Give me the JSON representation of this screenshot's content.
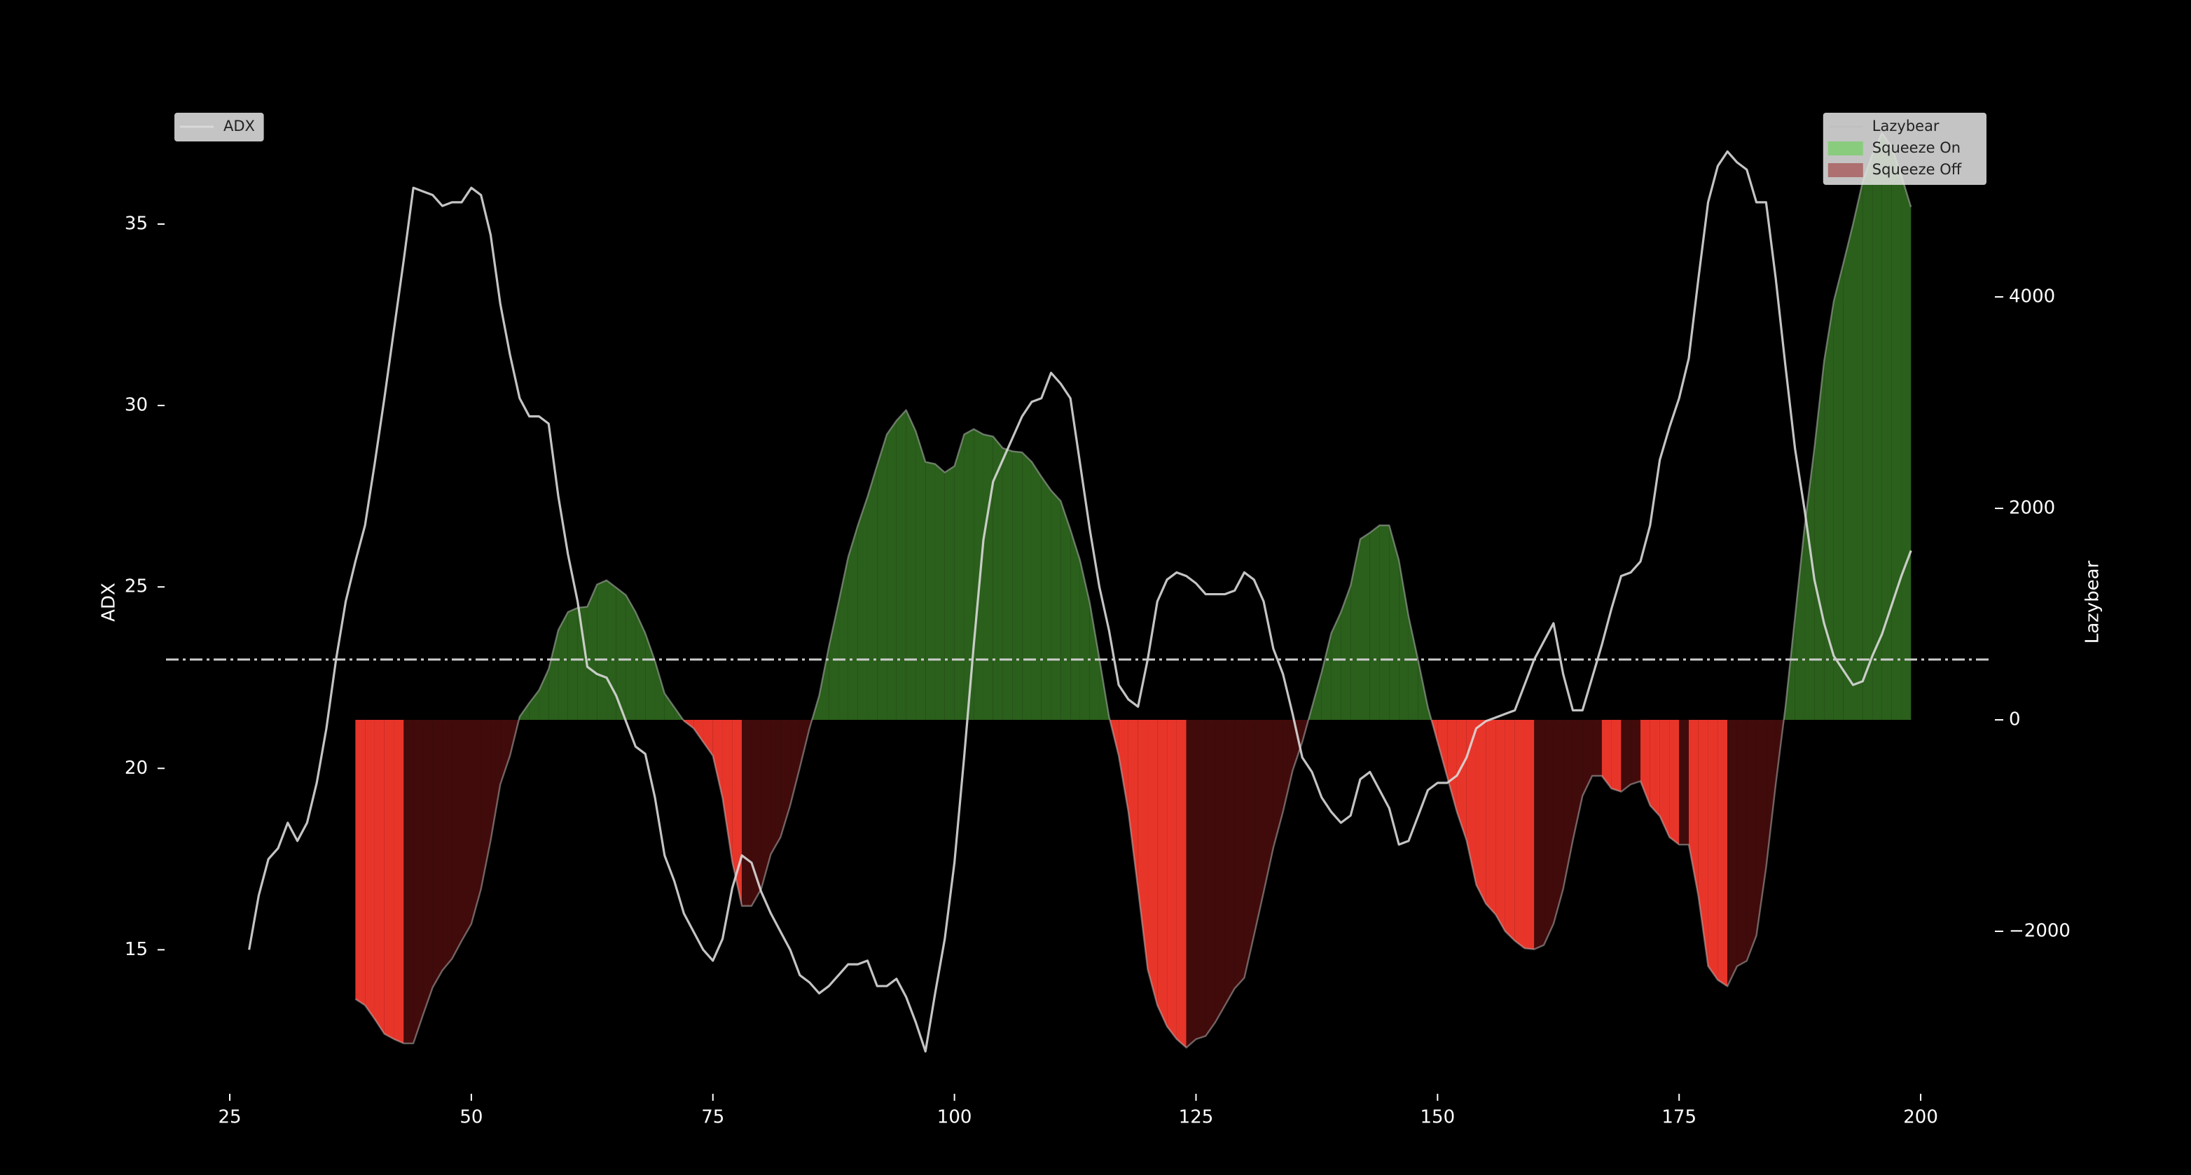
{
  "chart_data": {
    "type": "line",
    "ylabel": "ADX",
    "y2label": "Lazybear",
    "xlim": [
      18.4,
      207.1
    ],
    "xticks": [
      25,
      50,
      75,
      100,
      125,
      150,
      175,
      200
    ],
    "ylim": [
      10.8,
      38.3
    ],
    "yticks": [
      15,
      20,
      25,
      30,
      35
    ],
    "y2lim": [
      -3616,
      5821
    ],
    "y2ticks": [
      {
        "value": -2000,
        "label": "−2000"
      },
      0,
      2000,
      4000
    ],
    "threshold": 23,
    "threshold_color": "#cccccc",
    "legend_loc": "upper left",
    "legend2_loc": "upper right",
    "series": [
      {
        "name": "ADX",
        "color": "#d9d9d9",
        "x": [
          27,
          28,
          29,
          30,
          31,
          32,
          33,
          34,
          35,
          36,
          37,
          38,
          39,
          40,
          41,
          42,
          43,
          44,
          45,
          46,
          47,
          48,
          49,
          50,
          51,
          52,
          53,
          54,
          55,
          56,
          57,
          58,
          59,
          60,
          61,
          62,
          63,
          64,
          65,
          66,
          67,
          68,
          69,
          70,
          71,
          72,
          73,
          74,
          75,
          76,
          77,
          78,
          79,
          80,
          81,
          82,
          83,
          84,
          85,
          86,
          87,
          88,
          89,
          90,
          91,
          92,
          93,
          94,
          95,
          96,
          97,
          98,
          99,
          100,
          101,
          102,
          103,
          104,
          105,
          106,
          107,
          108,
          109,
          110,
          111,
          112,
          113,
          114,
          115,
          116,
          117,
          118,
          119,
          120,
          121,
          122,
          123,
          124,
          125,
          126,
          127,
          128,
          129,
          130,
          131,
          132,
          133,
          134,
          135,
          136,
          137,
          138,
          139,
          140,
          141,
          142,
          143,
          144,
          145,
          146,
          147,
          148,
          149,
          150,
          151,
          152,
          153,
          154,
          155,
          156,
          157,
          158,
          159,
          160,
          161,
          162,
          163,
          164,
          165,
          166,
          167,
          168,
          169,
          170,
          171,
          172,
          173,
          174,
          175,
          176,
          177,
          178,
          179,
          180,
          181,
          182,
          183,
          184,
          185,
          186,
          187,
          188,
          189,
          190,
          191,
          192,
          193,
          194,
          195,
          196,
          197,
          198,
          199
        ],
        "values": [
          15.0,
          16.5,
          17.5,
          17.8,
          18.5,
          18.0,
          18.5,
          19.6,
          21.1,
          23.0,
          24.6,
          25.7,
          26.7,
          28.4,
          30.2,
          32.1,
          34.0,
          36.0,
          35.9,
          35.8,
          35.5,
          35.6,
          35.6,
          36.0,
          35.8,
          34.7,
          32.8,
          31.4,
          30.2,
          29.7,
          29.7,
          29.5,
          27.5,
          25.9,
          24.6,
          22.8,
          22.6,
          22.5,
          22.0,
          21.3,
          20.6,
          20.4,
          19.2,
          17.6,
          16.9,
          16.0,
          15.5,
          15.0,
          14.7,
          15.3,
          16.7,
          17.6,
          17.4,
          16.6,
          16.0,
          15.5,
          15.0,
          14.3,
          14.1,
          13.8,
          14.0,
          14.3,
          14.6,
          14.6,
          14.7,
          14.0,
          14.0,
          14.2,
          13.7,
          13.0,
          12.2,
          13.8,
          15.3,
          17.4,
          20.3,
          23.4,
          26.3,
          27.9,
          28.5,
          29.1,
          29.7,
          30.1,
          30.2,
          30.9,
          30.6,
          30.2,
          28.4,
          26.6,
          25.0,
          23.8,
          22.3,
          21.9,
          21.7,
          23.0,
          24.6,
          25.2,
          25.4,
          25.3,
          25.1,
          24.8,
          24.8,
          24.8,
          24.9,
          25.4,
          25.2,
          24.6,
          23.3,
          22.6,
          21.5,
          20.3,
          19.9,
          19.2,
          18.8,
          18.5,
          18.7,
          19.7,
          19.9,
          19.4,
          18.9,
          17.9,
          18.0,
          18.7,
          19.4,
          19.6,
          19.6,
          19.8,
          20.3,
          21.1,
          21.3,
          21.4,
          21.5,
          21.6,
          22.3,
          23.0,
          23.5,
          24.0,
          22.6,
          21.6,
          21.6,
          22.5,
          23.4,
          24.4,
          25.3,
          25.4,
          25.7,
          26.7,
          28.5,
          29.4,
          30.2,
          31.3,
          33.5,
          35.6,
          36.6,
          37.0,
          36.7,
          36.5,
          35.6,
          35.6,
          33.5,
          31.1,
          28.8,
          27.1,
          25.2,
          24.0,
          23.1,
          22.7,
          22.3,
          22.4,
          23.1,
          23.7,
          24.5,
          25.3,
          26.0
        ]
      },
      {
        "name": "Lazybear",
        "color": "#bfbfbf",
        "axis": "y2",
        "x": [
          38,
          39,
          40,
          41,
          42,
          43,
          44,
          45,
          46,
          47,
          48,
          49,
          50,
          51,
          52,
          53,
          54,
          55,
          56,
          57,
          58,
          59,
          60,
          61,
          62,
          63,
          64,
          65,
          66,
          67,
          68,
          69,
          70,
          71,
          72,
          73,
          74,
          75,
          76,
          77,
          78,
          79,
          80,
          81,
          82,
          83,
          84,
          85,
          86,
          87,
          88,
          89,
          90,
          91,
          92,
          93,
          94,
          95,
          96,
          97,
          98,
          99,
          100,
          101,
          102,
          103,
          104,
          105,
          106,
          107,
          108,
          109,
          110,
          111,
          112,
          113,
          114,
          115,
          116,
          117,
          118,
          119,
          120,
          121,
          122,
          123,
          124,
          125,
          126,
          127,
          128,
          129,
          130,
          131,
          132,
          133,
          134,
          135,
          136,
          137,
          138,
          139,
          140,
          141,
          142,
          143,
          144,
          145,
          146,
          147,
          148,
          149,
          150,
          151,
          152,
          153,
          154,
          155,
          156,
          157,
          158,
          159,
          160,
          161,
          162,
          163,
          164,
          165,
          166,
          167,
          168,
          169,
          170,
          171,
          172,
          173,
          174,
          175,
          176,
          177,
          178,
          179,
          180,
          181,
          182,
          183,
          184,
          185,
          186,
          187,
          188,
          189,
          190,
          191,
          192,
          193,
          194,
          195,
          196,
          197,
          198,
          199
        ],
        "values": [
          -2640,
          -2700,
          -2830,
          -2970,
          -3020,
          -3060,
          -3060,
          -2790,
          -2530,
          -2370,
          -2260,
          -2090,
          -1930,
          -1600,
          -1140,
          -610,
          -340,
          30,
          160,
          280,
          480,
          850,
          1020,
          1060,
          1070,
          1280,
          1320,
          1250,
          1180,
          1020,
          820,
          560,
          250,
          120,
          -10,
          -80,
          -210,
          -340,
          -740,
          -1340,
          -1760,
          -1760,
          -1600,
          -1270,
          -1110,
          -810,
          -450,
          -80,
          230,
          690,
          1110,
          1540,
          1840,
          2110,
          2410,
          2700,
          2830,
          2930,
          2730,
          2440,
          2420,
          2340,
          2400,
          2700,
          2750,
          2700,
          2680,
          2570,
          2540,
          2530,
          2440,
          2300,
          2170,
          2070,
          1800,
          1510,
          1110,
          580,
          30,
          -340,
          -870,
          -1600,
          -2360,
          -2700,
          -2900,
          -3020,
          -3100,
          -3020,
          -2990,
          -2860,
          -2700,
          -2540,
          -2440,
          -2040,
          -1630,
          -1210,
          -870,
          -480,
          -210,
          120,
          450,
          820,
          1020,
          1270,
          1710,
          1770,
          1840,
          1840,
          1510,
          980,
          560,
          120,
          -210,
          -540,
          -870,
          -1140,
          -1560,
          -1740,
          -1840,
          -2000,
          -2090,
          -2160,
          -2170,
          -2130,
          -1930,
          -1600,
          -1140,
          -720,
          -530,
          -530,
          -650,
          -680,
          -610,
          -580,
          -810,
          -910,
          -1110,
          -1180,
          -1180,
          -1670,
          -2330,
          -2460,
          -2520,
          -2330,
          -2280,
          -2040,
          -1400,
          -610,
          120,
          980,
          1840,
          2570,
          3390,
          3960,
          4320,
          4690,
          5090,
          5350,
          5550,
          5420,
          5150,
          4850
        ]
      }
    ],
    "fills": [
      {
        "name": "Squeeze On",
        "color": "#7ccf6c",
        "fill": "#2b5f1c"
      },
      {
        "name": "Squeeze Off",
        "color": "#a85a5a",
        "fill_falling": "#e8352a",
        "fill_rising": "#420b0b"
      }
    ]
  }
}
